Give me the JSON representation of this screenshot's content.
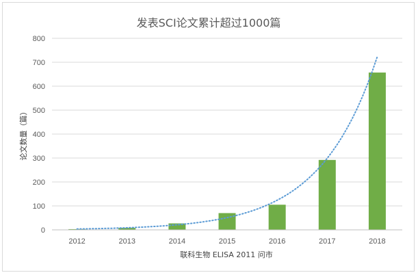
{
  "chart_data": {
    "type": "bar",
    "title": "发表SCI论文累计超过1000篇",
    "xlabel": "联科生物 ELISA 2011 问市",
    "ylabel": "论文数量（篇）",
    "categories": [
      "2012",
      "2013",
      "2014",
      "2015",
      "2016",
      "2017",
      "2018"
    ],
    "series": [
      {
        "values": [
          3,
          8,
          27,
          70,
          105,
          292,
          657
        ]
      }
    ],
    "ylim": [
      0,
      800
    ],
    "yticks": [
      0,
      100,
      200,
      300,
      400,
      500,
      600,
      700,
      800
    ],
    "grid": true,
    "trendline": {
      "type": "exponential",
      "style": "dotted"
    },
    "colors": {
      "bar": "#70ad47",
      "trendline": "#5b9bd5",
      "grid": "#d9d9d9",
      "text": "#595959"
    }
  }
}
